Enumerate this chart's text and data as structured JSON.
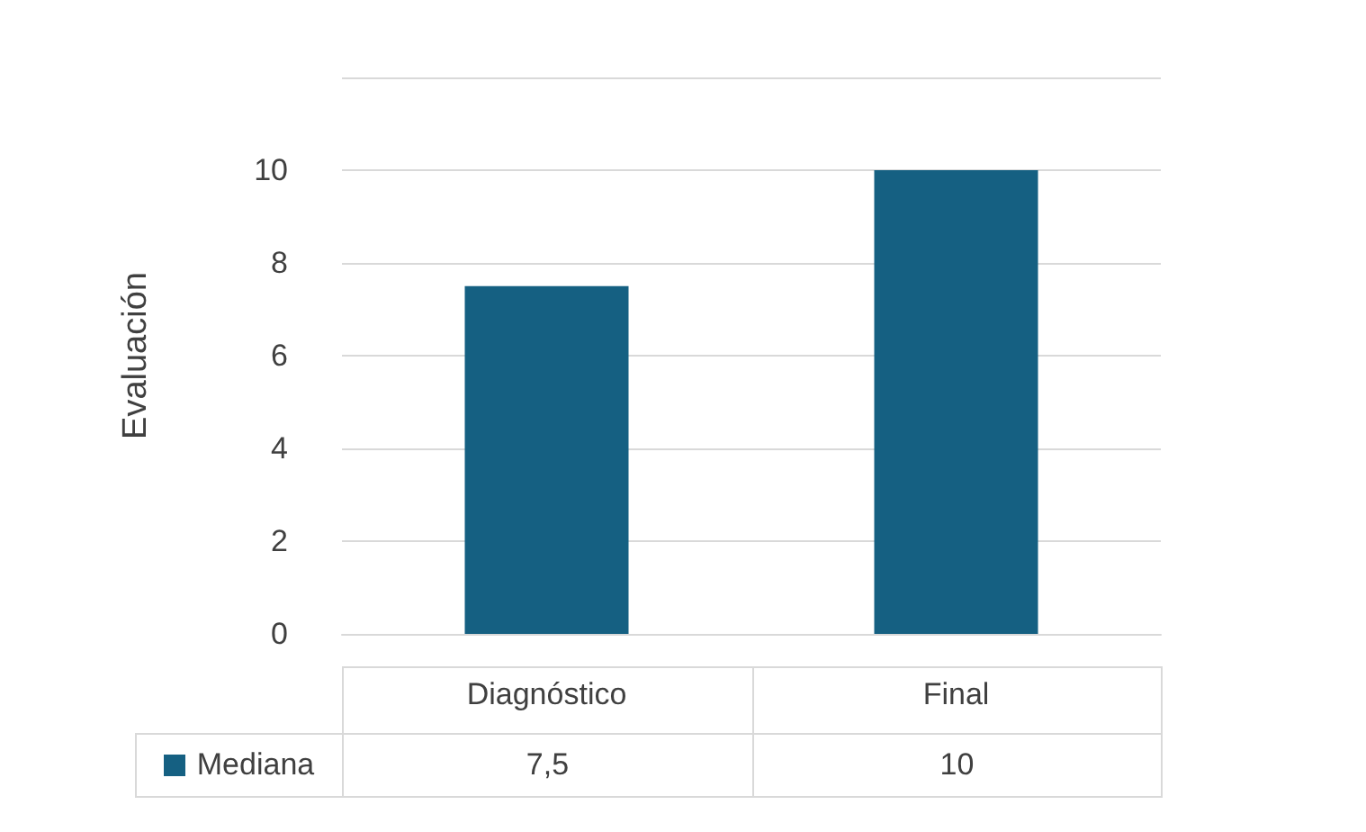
{
  "chart_data": {
    "type": "bar",
    "ylabel": "Evaluación",
    "categories": [
      "Diagnóstico",
      "Final"
    ],
    "series": [
      {
        "name": "Mediana",
        "color": "#156082",
        "values": [
          7.5,
          10
        ],
        "value_labels": [
          "7,5",
          "10"
        ]
      }
    ],
    "ylim": [
      0,
      12
    ],
    "yticks": [
      0,
      2,
      4,
      6,
      8,
      10,
      {
        "value": 12,
        "label": null
      }
    ],
    "grid": "y",
    "legend": "bottom"
  }
}
